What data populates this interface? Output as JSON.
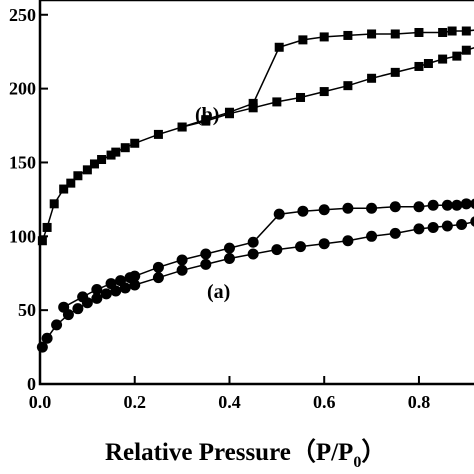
{
  "chart_data": {
    "type": "line",
    "xlabel": "Relative Pressure（P/P",
    "xlabel_subscript": "0",
    "xlabel_close": "）",
    "xlim": [
      0.0,
      0.95
    ],
    "ylim": [
      0,
      260
    ],
    "x_ticks": [
      "0.0",
      "0.2",
      "0.4",
      "0.6",
      "0.8"
    ],
    "y_ticks": [
      "0",
      "50",
      "100",
      "150",
      "200",
      "250"
    ],
    "series": [
      {
        "name": "(b)",
        "marker": "square",
        "branches": [
          {
            "x": [
              0.005,
              0.015,
              0.03,
              0.05,
              0.065,
              0.08,
              0.1,
              0.115,
              0.13,
              0.15,
              0.16,
              0.18,
              0.2,
              0.25,
              0.3,
              0.35,
              0.4,
              0.45,
              0.5,
              0.55,
              0.6,
              0.65,
              0.7,
              0.75,
              0.8,
              0.82,
              0.85,
              0.88,
              0.9,
              0.93
            ],
            "y": [
              97,
              106,
              122,
              132,
              136,
              141,
              145,
              149,
              152,
              155,
              157,
              160,
              163,
              169,
              174,
              178,
              183,
              187,
              191,
              194,
              198,
              202,
              207,
              211,
              215,
              217,
              220,
              222,
              226,
              229
            ]
          },
          {
            "x": [
              0.93,
              0.9,
              0.87,
              0.85,
              0.8,
              0.75,
              0.7,
              0.65,
              0.6,
              0.555,
              0.505,
              0.45,
              0.4,
              0.35,
              0.3
            ],
            "y": [
              240,
              239,
              239,
              238,
              238,
              237,
              237,
              236,
              235,
              233,
              228,
              190,
              184,
              179,
              174
            ]
          }
        ]
      },
      {
        "name": "(a)",
        "marker": "circle",
        "branches": [
          {
            "x": [
              0.005,
              0.015,
              0.035,
              0.06,
              0.08,
              0.1,
              0.12,
              0.14,
              0.16,
              0.18,
              0.2,
              0.25,
              0.3,
              0.35,
              0.4,
              0.45,
              0.5,
              0.55,
              0.6,
              0.65,
              0.7,
              0.75,
              0.8,
              0.83,
              0.86,
              0.89,
              0.92,
              0.94
            ],
            "y": [
              25,
              31,
              40,
              47,
              51,
              55,
              58,
              61,
              63,
              65,
              67,
              72,
              77,
              81,
              85,
              88,
              91,
              93,
              95,
              97,
              100,
              102,
              105,
              106,
              107,
              108,
              110,
              112
            ]
          },
          {
            "x": [
              0.94,
              0.92,
              0.9,
              0.88,
              0.86,
              0.83,
              0.8,
              0.75,
              0.7,
              0.65,
              0.6,
              0.555,
              0.505,
              0.45,
              0.4,
              0.35,
              0.3,
              0.25,
              0.2,
              0.19,
              0.17,
              0.15,
              0.12,
              0.09,
              0.05
            ],
            "y": [
              123,
              122,
              122,
              121,
              121,
              121,
              120,
              120,
              119,
              119,
              118,
              117,
              115,
              96,
              92,
              88,
              84,
              79,
              73,
              72,
              70,
              68,
              64,
              59,
              52
            ]
          }
        ]
      }
    ]
  }
}
